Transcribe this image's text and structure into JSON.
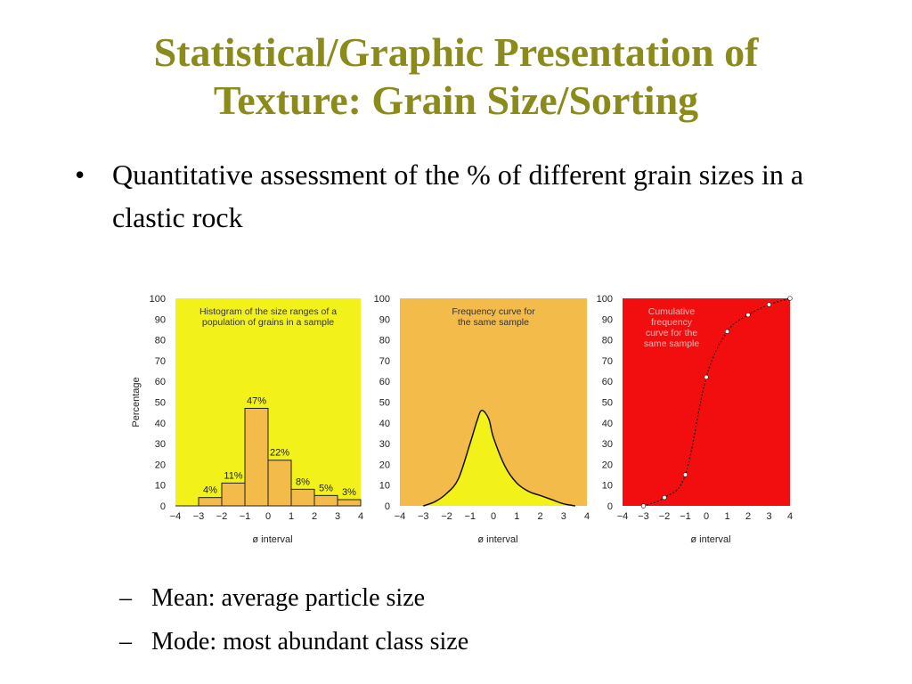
{
  "slide": {
    "title_line1": "Statistical/Graphic Presentation of",
    "title_line2": "Texture: Grain Size/Sorting",
    "bullet_symbol": "•",
    "bullet_text": "Quantitative assessment of the % of different grain sizes in a clastic rock",
    "sub_items": [
      {
        "dash": "–",
        "text": "Mean: average particle size"
      },
      {
        "dash": "–",
        "text": "Mode: most abundant class size"
      }
    ],
    "colors": {
      "title": "#8b8b1c",
      "yellow": "#f2f21a",
      "orange": "#f2bb4a",
      "red": "#f20e0e",
      "bar": "#f2bb4a"
    }
  },
  "chart_data": [
    {
      "type": "bar",
      "title": "Histogram of the size ranges of a population of grains in a sample",
      "ylabel": "Percentage",
      "xlabel": "ø interval",
      "ylim": [
        0,
        100
      ],
      "xlim": [
        -4,
        4
      ],
      "x_ticks": [
        "−4",
        "−3",
        "−2",
        "−1",
        "0",
        "1",
        "2",
        "3",
        "4"
      ],
      "y_ticks": [
        "0",
        "10",
        "20",
        "30",
        "40",
        "50",
        "60",
        "70",
        "80",
        "90",
        "100"
      ],
      "bins": [
        [
          -3,
          -2
        ],
        [
          -2,
          -1
        ],
        [
          -1,
          0
        ],
        [
          0,
          1
        ],
        [
          1,
          2
        ],
        [
          2,
          3
        ],
        [
          3,
          4
        ]
      ],
      "values": [
        4,
        11,
        47,
        22,
        8,
        5,
        3
      ],
      "labels": [
        "4%",
        "11%",
        "47%",
        "22%",
        "8%",
        "5%",
        "3%"
      ],
      "background": "#f2f21a"
    },
    {
      "type": "area",
      "title": "Frequency curve for the same sample",
      "xlabel": "ø interval",
      "ylim": [
        0,
        100
      ],
      "xlim": [
        -4,
        4
      ],
      "x_ticks": [
        "−4",
        "−3",
        "−2",
        "−1",
        "0",
        "1",
        "2",
        "3",
        "4"
      ],
      "y_ticks": [
        "0",
        "10",
        "20",
        "30",
        "40",
        "50",
        "60",
        "70",
        "80",
        "90",
        "100"
      ],
      "x": [
        -3,
        -2.5,
        -2,
        -1.5,
        -1,
        -0.7,
        -0.5,
        -0.2,
        0,
        0.5,
        1,
        1.5,
        2,
        2.5,
        3,
        3.5
      ],
      "values": [
        0,
        2,
        6,
        13,
        30,
        41,
        46,
        42,
        33,
        19,
        11,
        7,
        5,
        3,
        1,
        0
      ],
      "background": "#f2bb4a"
    },
    {
      "type": "line",
      "title": "Cumulative frequency curve for the same sample",
      "xlabel": "ø interval",
      "ylim": [
        0,
        100
      ],
      "xlim": [
        -4,
        4
      ],
      "x_ticks": [
        "−4",
        "−3",
        "−2",
        "−1",
        "0",
        "1",
        "2",
        "3",
        "4"
      ],
      "y_ticks": [
        "0",
        "10",
        "20",
        "30",
        "40",
        "50",
        "60",
        "70",
        "80",
        "90",
        "100"
      ],
      "x": [
        -3,
        -2,
        -1,
        0,
        1,
        2,
        3,
        4
      ],
      "values": [
        0,
        4,
        15,
        62,
        84,
        92,
        97,
        100
      ],
      "background": "#f20e0e"
    }
  ]
}
